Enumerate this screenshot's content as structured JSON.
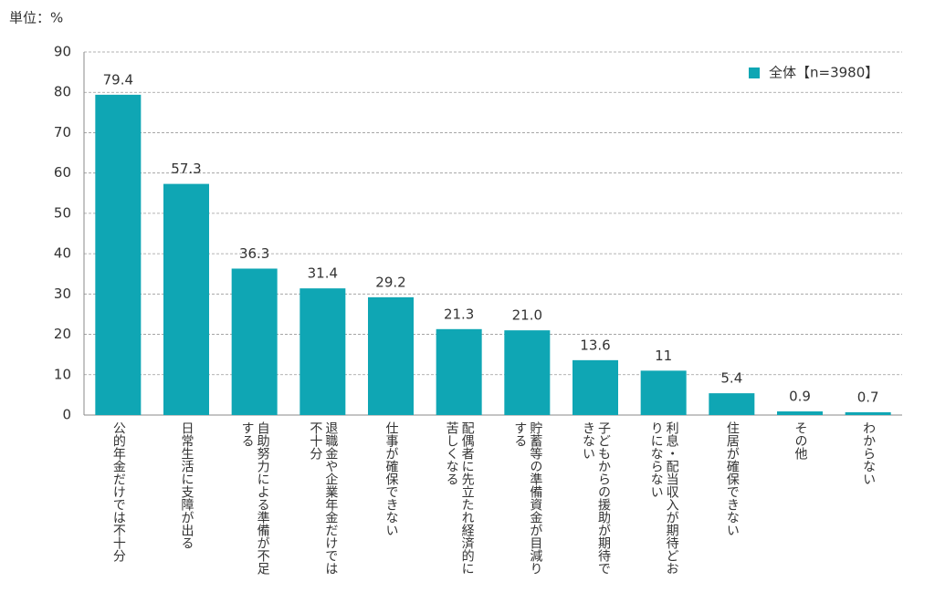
{
  "chart_data": {
    "type": "bar",
    "unit_label": "単位：%",
    "categories": [
      "公的年金だけでは不十分",
      "日常生活に支障が出る",
      "自助努力による準備が不足する",
      "退職金や企業年金だけでは不十分",
      "仕事が確保できない",
      "配偶者に先立たれ経済的に苦しくなる",
      "貯蓄等の準備資金が目減りする",
      "子どもからの援助が期待できない",
      "利息・配当収入が期待どおりにならない",
      "住居が確保できない",
      "その他",
      "わからない"
    ],
    "series": [
      {
        "name": "全体【n=3980】",
        "color": "#0fa6b4",
        "values": [
          79.4,
          57.3,
          36.3,
          31.4,
          29.2,
          21.3,
          21.0,
          13.6,
          11,
          5.4,
          0.9,
          0.7
        ],
        "value_labels": [
          "79.4",
          "57.3",
          "36.3",
          "31.4",
          "29.2",
          "21.3",
          "21.0",
          "13.6",
          "11",
          "5.4",
          "0.9",
          "0.7"
        ]
      }
    ],
    "ylim": [
      0,
      90
    ],
    "yticks": [
      0,
      10,
      20,
      30,
      40,
      50,
      60,
      70,
      80,
      90
    ],
    "grid": true,
    "legend": "top-right"
  }
}
